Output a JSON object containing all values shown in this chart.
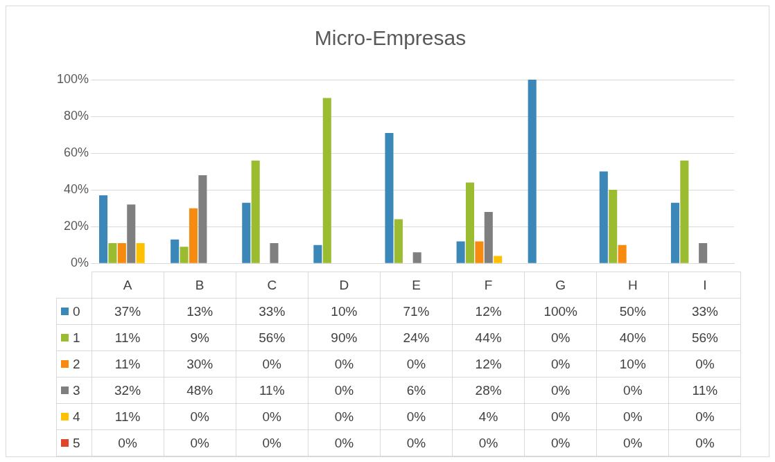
{
  "chart_data": {
    "type": "bar",
    "title": "Micro-Empresas",
    "categories": [
      "A",
      "B",
      "C",
      "D",
      "E",
      "F",
      "G",
      "H",
      "I"
    ],
    "ylim": [
      0,
      100
    ],
    "yticks": [
      {
        "value": 0,
        "label": "0%"
      },
      {
        "value": 20,
        "label": "20%"
      },
      {
        "value": 40,
        "label": "40%"
      },
      {
        "value": 60,
        "label": "60%"
      },
      {
        "value": 80,
        "label": "80%"
      },
      {
        "value": 100,
        "label": "100%"
      }
    ],
    "grid": "y",
    "legend": "bottom",
    "series": [
      {
        "name": "0",
        "color": "#3a87b8",
        "values": [
          37,
          13,
          33,
          10,
          71,
          12,
          100,
          50,
          33
        ],
        "value_labels": [
          "37%",
          "13%",
          "33%",
          "10%",
          "71%",
          "12%",
          "100%",
          "50%",
          "33%"
        ]
      },
      {
        "name": "1",
        "color": "#9bbb30",
        "values": [
          11,
          9,
          56,
          90,
          24,
          44,
          0,
          40,
          56
        ],
        "value_labels": [
          "11%",
          "9%",
          "56%",
          "90%",
          "24%",
          "44%",
          "0%",
          "40%",
          "56%"
        ]
      },
      {
        "name": "2",
        "color": "#f68b0f",
        "values": [
          11,
          30,
          0,
          0,
          0,
          12,
          0,
          10,
          0
        ],
        "value_labels": [
          "11%",
          "30%",
          "0%",
          "0%",
          "0%",
          "12%",
          "0%",
          "10%",
          "0%"
        ]
      },
      {
        "name": "3",
        "color": "#7f7f7f",
        "values": [
          32,
          48,
          11,
          0,
          6,
          28,
          0,
          0,
          11
        ],
        "value_labels": [
          "32%",
          "48%",
          "11%",
          "0%",
          "6%",
          "28%",
          "0%",
          "0%",
          "11%"
        ]
      },
      {
        "name": "4",
        "color": "#ffc000",
        "values": [
          11,
          0,
          0,
          0,
          0,
          4,
          0,
          0,
          0
        ],
        "value_labels": [
          "11%",
          "0%",
          "0%",
          "0%",
          "0%",
          "4%",
          "0%",
          "0%",
          "0%"
        ]
      },
      {
        "name": "5",
        "color": "#e0452a",
        "values": [
          0,
          0,
          0,
          0,
          0,
          0,
          0,
          0,
          0
        ],
        "value_labels": [
          "0%",
          "0%",
          "0%",
          "0%",
          "0%",
          "0%",
          "0%",
          "0%",
          "0%"
        ]
      }
    ]
  }
}
